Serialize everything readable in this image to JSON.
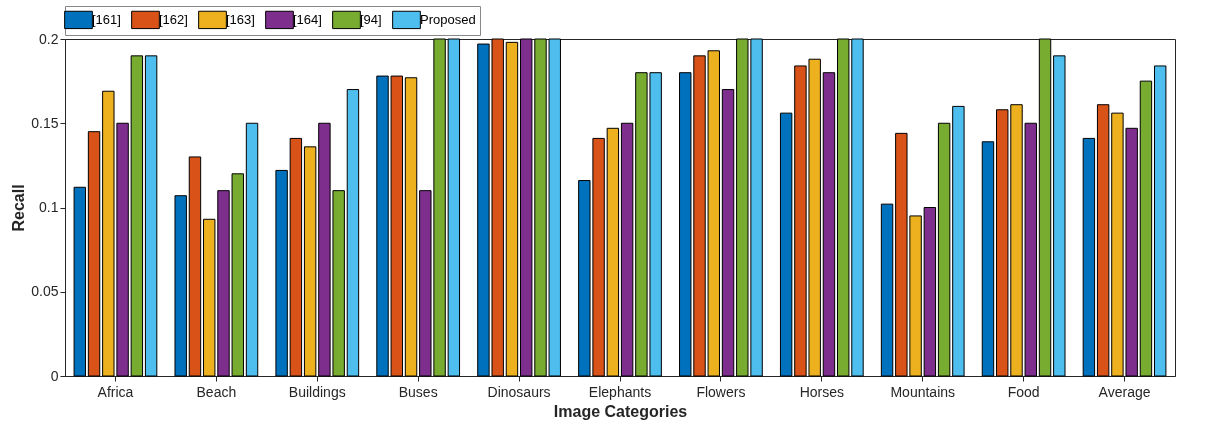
{
  "chart_data": {
    "type": "bar",
    "xlabel": "Image Categories",
    "ylabel": "Recall",
    "categories": [
      "Africa",
      "Beach",
      "Buildings",
      "Buses",
      "Dinosaurs",
      "Elephants",
      "Flowers",
      "Horses",
      "Mountains",
      "Food",
      "Average"
    ],
    "series": [
      {
        "name": "[161]",
        "color": "#0072bd",
        "values": [
          0.112,
          0.107,
          0.122,
          0.178,
          0.197,
          0.116,
          0.18,
          0.156,
          0.102,
          0.139,
          0.141
        ]
      },
      {
        "name": "[162]",
        "color": "#d95319",
        "values": [
          0.145,
          0.13,
          0.141,
          0.178,
          0.2,
          0.141,
          0.19,
          0.184,
          0.144,
          0.158,
          0.161
        ]
      },
      {
        "name": "[163]",
        "color": "#edb120",
        "values": [
          0.169,
          0.093,
          0.136,
          0.177,
          0.198,
          0.147,
          0.193,
          0.188,
          0.095,
          0.161,
          0.156
        ]
      },
      {
        "name": "[164]",
        "color": "#7e2f8e",
        "values": [
          0.15,
          0.11,
          0.15,
          0.11,
          0.2,
          0.15,
          0.17,
          0.18,
          0.1,
          0.15,
          0.147
        ]
      },
      {
        "name": "[94]",
        "color": "#77ac30",
        "values": [
          0.19,
          0.12,
          0.11,
          0.2,
          0.2,
          0.18,
          0.2,
          0.2,
          0.15,
          0.2,
          0.175
        ]
      },
      {
        "name": "Proposed",
        "color": "#4dbeee",
        "values": [
          0.19,
          0.15,
          0.17,
          0.2,
          0.2,
          0.18,
          0.2,
          0.2,
          0.16,
          0.19,
          0.184
        ]
      }
    ],
    "ylim": [
      0,
      0.2
    ],
    "yticks": [
      0,
      0.05,
      0.1,
      0.15,
      0.2
    ],
    "grid": false,
    "legend": "top"
  }
}
